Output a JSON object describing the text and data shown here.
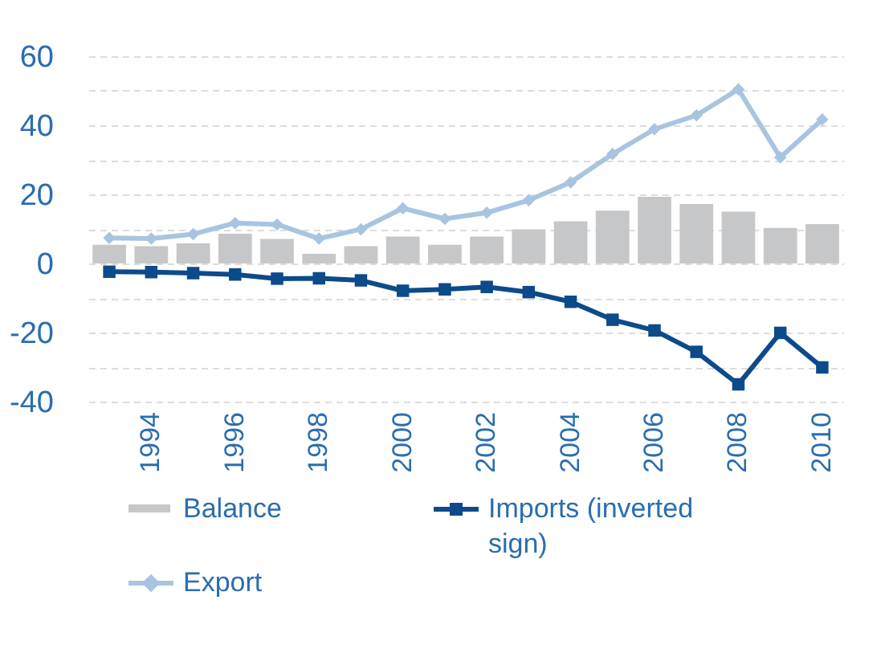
{
  "chart_data": {
    "type": "bar",
    "categories": [
      null,
      "1994",
      null,
      "1996",
      null,
      "1998",
      null,
      "2000",
      null,
      "2002",
      null,
      "2004",
      null,
      "2006",
      null,
      "2008",
      null,
      "2010"
    ],
    "series": [
      {
        "name": "Balance",
        "color": "#c6c7c8",
        "values": [
          5.4,
          5.0,
          5.8,
          8.6,
          7.1,
          2.8,
          5.0,
          7.8,
          5.4,
          7.8,
          9.9,
          12.2,
          15.3,
          19.3,
          17.2,
          15.0,
          10.3,
          11.4
        ]
      },
      {
        "name": "Export",
        "type": "line",
        "marker": "diamond",
        "color": "#a9c4e0",
        "values": [
          7.4,
          7.2,
          8.5,
          11.7,
          11.3,
          7.2,
          9.9,
          16.0,
          12.9,
          14.7,
          18.3,
          23.5,
          31.7,
          38.9,
          42.9,
          50.4,
          30.7,
          41.7
        ]
      },
      {
        "name": "Imports (inverted sign)",
        "type": "line",
        "marker": "square",
        "color": "#0d4a8a",
        "values": [
          -2.4,
          -2.5,
          -2.8,
          -3.2,
          -4.4,
          -4.3,
          -4.9,
          -7.9,
          -7.5,
          -6.8,
          -8.3,
          -11.1,
          -16.3,
          -19.4,
          -25.6,
          -35.0,
          -20.1,
          -30.1
        ]
      }
    ],
    "ylim": [
      -40,
      60
    ],
    "yticks": [
      -40,
      {
        "value": -30,
        "label": null
      },
      -20,
      {
        "value": -10,
        "label": null
      },
      0,
      {
        "value": 10,
        "label": null
      },
      20,
      {
        "value": 30,
        "label": null
      },
      40,
      {
        "value": 50,
        "label": null
      },
      60
    ],
    "grid": "y",
    "legend": "bottom"
  }
}
